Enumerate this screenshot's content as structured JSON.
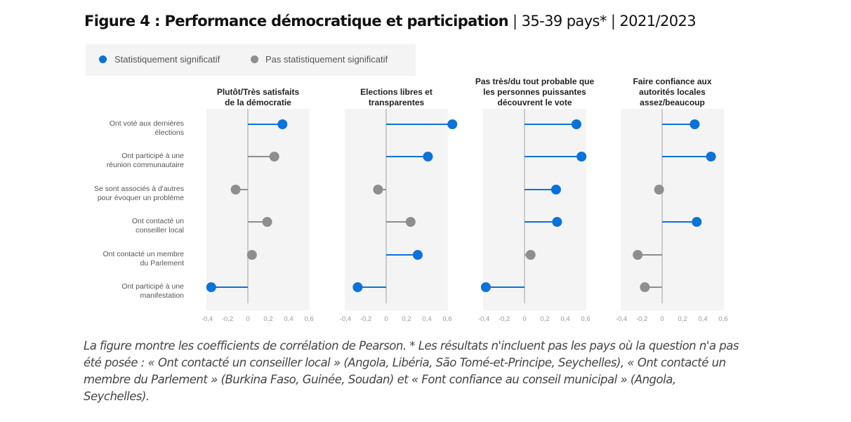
{
  "title": {
    "bold": "Figure 4 : Performance démocratique et participation",
    "sep1": "|",
    "countries": "35-39 pays*",
    "sep2": "|",
    "years": "2021/2023"
  },
  "legend": {
    "significant": "Statistiquement significatif",
    "not_significant": "Pas statistiquement significatif"
  },
  "colors": {
    "significant": "#0b72d9",
    "not_significant": "#8e8e8e",
    "panel_bg": "#f4f4f4",
    "zero_line": "#bdbdbd"
  },
  "chart_data": {
    "type": "lollipop",
    "xlim": [
      -0.4,
      0.6
    ],
    "xticks": [
      -0.4,
      -0.2,
      0,
      0.2,
      0.4,
      0.6
    ],
    "xtick_labels": [
      "-0,4",
      "-0,2",
      "0",
      "0,2",
      "0,4",
      "0,6"
    ],
    "categories": [
      [
        "Ont voté aux dernières",
        "élections"
      ],
      [
        "Ont participé à une",
        "réunion communautaire"
      ],
      [
        "Se sont associés à d'autres",
        "pour évoquer un problème"
      ],
      [
        "Ont contacté un",
        "conseiller local"
      ],
      [
        "Ont contacté un membre",
        "du Parlement"
      ],
      [
        "Ont participé à une",
        "manifestation"
      ]
    ],
    "panels": [
      {
        "title": [
          "Plutôt/Très satisfaits",
          "de la démocratie"
        ],
        "values": [
          0.34,
          0.26,
          -0.12,
          0.19,
          0.04,
          -0.36
        ],
        "significant": [
          true,
          false,
          false,
          false,
          false,
          true
        ]
      },
      {
        "title": [
          "Elections libres et",
          "transparentes"
        ],
        "values": [
          0.65,
          0.41,
          -0.08,
          0.24,
          0.31,
          -0.28
        ],
        "significant": [
          true,
          true,
          false,
          false,
          true,
          true
        ]
      },
      {
        "title": [
          "Pas très/du tout probable que",
          "les personnes puissantes",
          "découvrent le vote"
        ],
        "values": [
          0.51,
          0.56,
          0.31,
          0.32,
          0.06,
          -0.38
        ],
        "significant": [
          true,
          true,
          true,
          true,
          false,
          true
        ]
      },
      {
        "title": [
          "Faire confiance aux",
          "autorités locales",
          "assez/beaucoup"
        ],
        "values": [
          0.32,
          0.48,
          -0.03,
          0.34,
          -0.24,
          -0.17
        ],
        "significant": [
          true,
          true,
          false,
          true,
          false,
          false
        ]
      }
    ]
  },
  "caption": "La figure montre les coefficients de corrélation de Pearson. * Les résultats n'incluent pas les pays où la question n'a pas été posée : « Ont contacté un conseiller local » (Angola, Libéria, São Tomé-et-Principe, Seychelles), « Ont contacté un membre du Parlement » (Burkina Faso, Guinée, Soudan) et « Font confiance au conseil municipal » (Angola, Seychelles)."
}
